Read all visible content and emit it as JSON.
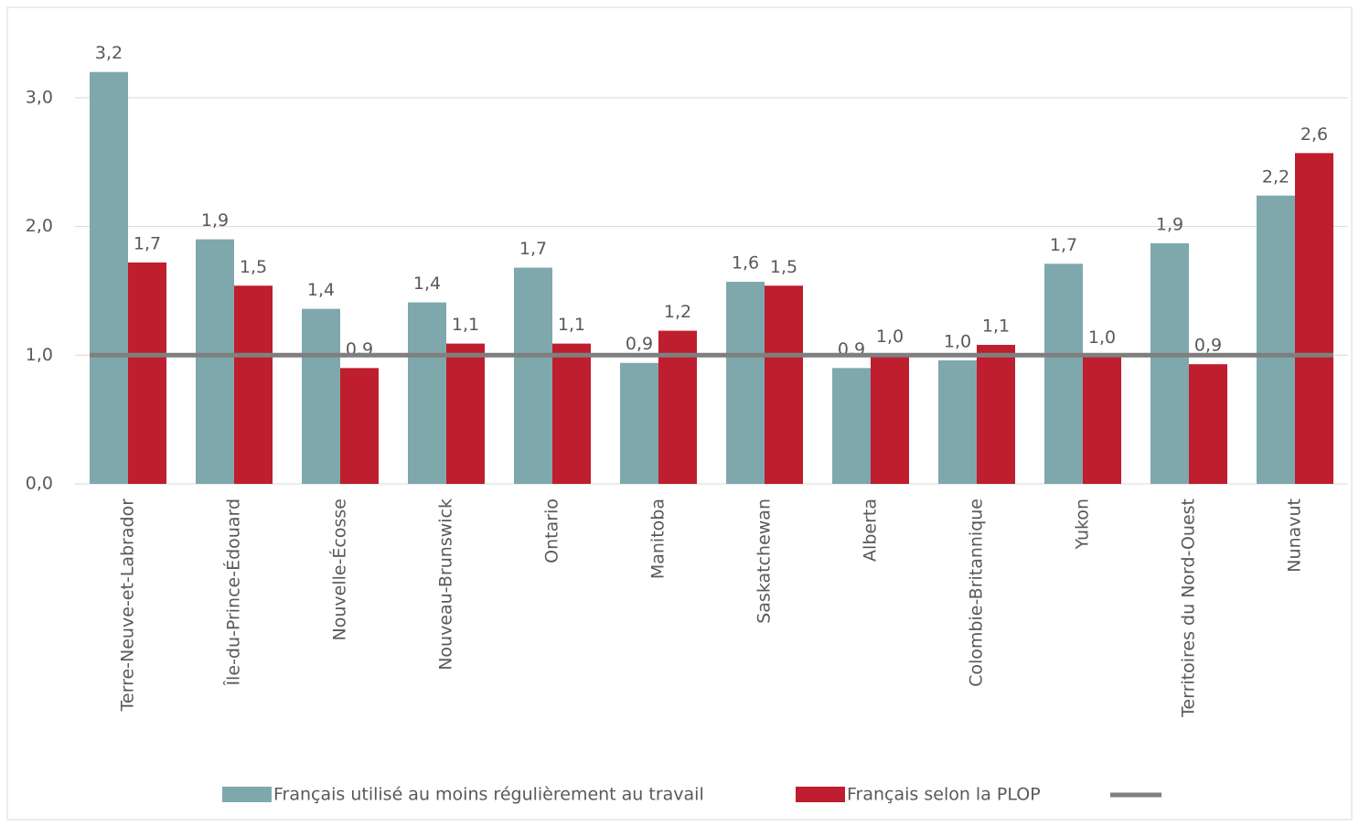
{
  "chart_data": {
    "type": "bar",
    "categories": [
      "Terre-Neuve-et-Labrador",
      "Île-du-Prince-Édouard",
      "Nouvelle-Écosse",
      "Nouveau-Brunswick",
      "Ontario",
      "Manitoba",
      "Saskatchewan",
      "Alberta",
      "Colombie-Britannique",
      "Yukon",
      "Territoires du Nord-Ouest",
      "Nunavut"
    ],
    "series": [
      {
        "name": "Français utilisé au moins régulièrement au travail",
        "color": "#7fa8ad",
        "values": [
          3.2,
          1.9,
          1.36,
          1.41,
          1.68,
          0.94,
          1.57,
          0.9,
          0.96,
          1.71,
          1.87,
          2.24
        ],
        "value_labels": [
          "3,2",
          "1,9",
          "1,4",
          "1,4",
          "1,7",
          "0,9",
          "1,6",
          "0,9",
          "1,0",
          "1,7",
          "1,9",
          "2,2"
        ]
      },
      {
        "name": "Français selon la PLOP",
        "color": "#be1e2d",
        "values": [
          1.72,
          1.54,
          0.9,
          1.09,
          1.09,
          1.19,
          1.54,
          1.0,
          1.08,
          0.99,
          0.93,
          2.57
        ],
        "value_labels": [
          "1,7",
          "1,5",
          "0,9",
          "1,1",
          "1,1",
          "1,2",
          "1,5",
          "1,0",
          "1,1",
          "1,0",
          "0,9",
          "2,6"
        ]
      }
    ],
    "reference_line": {
      "value": 1,
      "color": "#7f7f7f"
    },
    "ylim": [
      0,
      3.5
    ],
    "yticks": [
      {
        "value": 0,
        "label": "0,0"
      },
      {
        "value": 1,
        "label": "1,0"
      },
      {
        "value": 2,
        "label": "2,0"
      },
      {
        "value": 3,
        "label": "3,0"
      }
    ],
    "grid": true
  }
}
